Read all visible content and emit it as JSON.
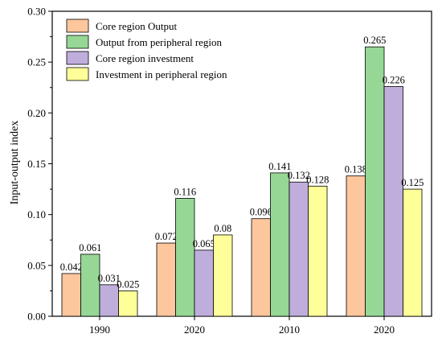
{
  "chart_data": {
    "type": "bar",
    "title": "",
    "xlabel": "",
    "ylabel": "Input-output index",
    "categories": [
      "1990",
      "2020",
      "2010",
      "2020"
    ],
    "ylim": [
      0,
      0.3
    ],
    "yticks": [
      "0.00",
      "0.05",
      "0.10",
      "0.15",
      "0.20",
      "0.25",
      "0.30"
    ],
    "grid": false,
    "legend_position": "top-left",
    "series": [
      {
        "name": "Core region Output",
        "color": "#FDC69C",
        "values": [
          0.042,
          0.072,
          0.096,
          0.138
        ],
        "labels": [
          "0.042",
          "0.072",
          "0.096",
          "0.138"
        ]
      },
      {
        "name": "Output from peripheral region",
        "color": "#96D796",
        "values": [
          0.061,
          0.116,
          0.141,
          0.265
        ],
        "labels": [
          "0.061",
          "0.116",
          "0.141",
          "0.265"
        ]
      },
      {
        "name": "Core region investment",
        "color": "#BFAEDC",
        "values": [
          0.031,
          0.065,
          0.132,
          0.226
        ],
        "labels": [
          "0.031",
          "0.065",
          "0.132",
          "0.226"
        ]
      },
      {
        "name": "Investment in peripheral region",
        "color": "#FFFF99",
        "values": [
          0.025,
          0.08,
          0.128,
          0.125
        ],
        "labels": [
          "0.025",
          "0.08",
          "0.128",
          "0.125"
        ]
      }
    ]
  }
}
